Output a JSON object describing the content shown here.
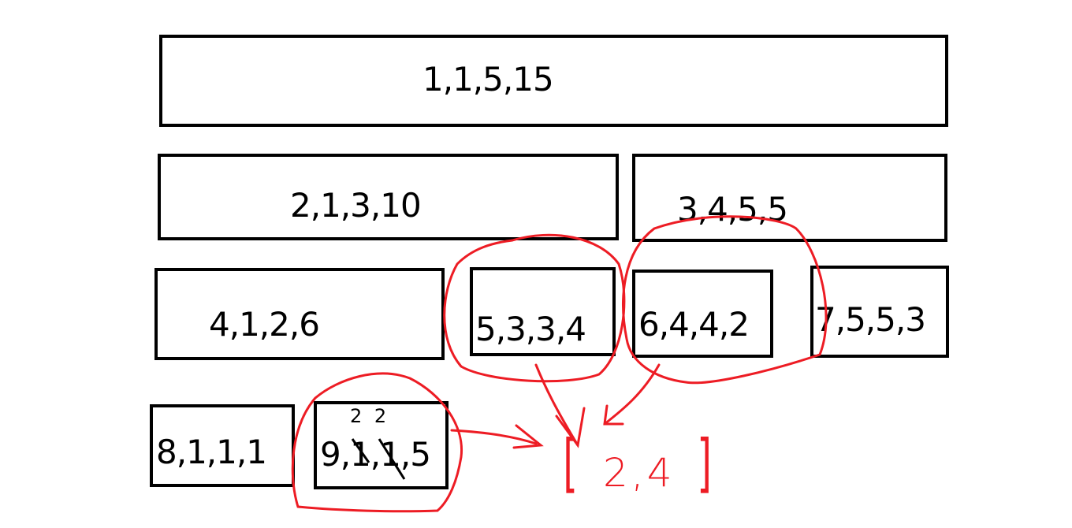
{
  "boxes": [
    {
      "id": 1,
      "label": "1,1,5,15"
    },
    {
      "id": 2,
      "label": "2,1,3,10"
    },
    {
      "id": 3,
      "label": "3,4,5,5"
    },
    {
      "id": 4,
      "label": "4,1,2,6"
    },
    {
      "id": 5,
      "label": "5,3,3,4"
    },
    {
      "id": 6,
      "label": "6,4,4,2"
    },
    {
      "id": 7,
      "label": "7,5,5,3"
    },
    {
      "id": 8,
      "label": "8,1,1,1"
    },
    {
      "id": 9,
      "label": "9,1,1,5"
    }
  ],
  "annotations": {
    "handwritten_corrections": "2 2",
    "result_open": "[",
    "result": "2,4",
    "result_close": "]",
    "annotation_color": "#ed1c24",
    "box_color": "#000000"
  }
}
